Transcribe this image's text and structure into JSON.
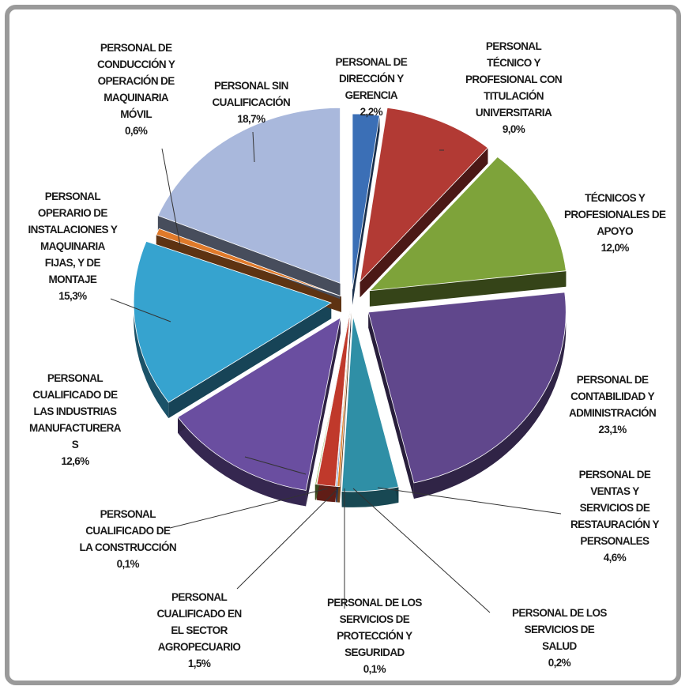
{
  "chart_data": {
    "type": "pie",
    "style": "exploded 3d pie",
    "legend": "none",
    "slices": [
      {
        "lines": [
          "PERSONAL DE",
          "DIRECCIÓN Y",
          "GERENCIA"
        ],
        "value_label": "2,2%",
        "value": 2.2,
        "color": "#3b6fb6"
      },
      {
        "lines": [
          "PERSONAL",
          "TÉCNICO Y",
          "PROFESIONAL CON",
          "TITULACIÓN",
          "UNIVERSITARIA"
        ],
        "value_label": "9,0%",
        "value": 9.0,
        "color": "#b23a34"
      },
      {
        "lines": [
          "TÉCNICOS Y",
          "PROFESIONALES DE",
          "APOYO"
        ],
        "value_label": "12,0%",
        "value": 12.0,
        "color": "#7ea33a"
      },
      {
        "lines": [
          "PERSONAL DE",
          "CONTABILIDAD Y",
          "ADMINISTRACIÓN"
        ],
        "value_label": "23,1%",
        "value": 23.1,
        "color": "#60478c"
      },
      {
        "lines": [
          "PERSONAL DE",
          "VENTAS Y",
          "SERVICIOS DE",
          "RESTAURACIÓN Y",
          "PERSONALES"
        ],
        "value_label": "4,6%",
        "value": 4.6,
        "color": "#2f8fa6"
      },
      {
        "lines": [
          "PERSONAL DE LOS",
          "SERVICIOS DE",
          "SALUD"
        ],
        "value_label": "0,2%",
        "value": 0.2,
        "color": "#e0812d"
      },
      {
        "lines": [
          "PERSONAL DE LOS",
          "SERVICIOS DE",
          "PROTECCIÓN Y",
          "SEGURIDAD"
        ],
        "value_label": "0,1%",
        "value": 0.1,
        "color": "#4a70b8"
      },
      {
        "lines": [
          "PERSONAL",
          "CUALIFICADO EN",
          "EL SECTOR",
          "AGROPECUARIO"
        ],
        "value_label": "1,5%",
        "value": 1.5,
        "color": "#c0392b"
      },
      {
        "lines": [
          "PERSONAL",
          "CUALIFICADO DE",
          "LA CONSTRUCCIÓN"
        ],
        "value_label": "0,1%",
        "value": 0.1,
        "color": "#8db04a"
      },
      {
        "lines": [
          "PERSONAL",
          "CUALIFICADO DE",
          "LAS INDUSTRIAS",
          "MANUFACTURERA",
          "S"
        ],
        "value_label": "12,6%",
        "value": 12.6,
        "color": "#6a4ea0"
      },
      {
        "lines": [
          "PERSONAL",
          "OPERARIO DE",
          "INSTALACIONES Y",
          "MAQUINARIA",
          "FIJAS, Y DE",
          "MONTAJE"
        ],
        "value_label": "15,3%",
        "value": 15.3,
        "color": "#36a3cf"
      },
      {
        "lines": [
          "PERSONAL DE",
          "CONDUCCIÓN Y",
          "OPERACIÓN DE",
          "MAQUINARIA",
          "MÓVIL"
        ],
        "value_label": "0,6%",
        "value": 0.6,
        "color": "#e07a2a"
      },
      {
        "lines": [
          "PERSONAL SIN",
          "CUALIFICACIÓN"
        ],
        "value_label": "18,7%",
        "value": 18.7,
        "color": "#a9b8dc"
      }
    ]
  }
}
